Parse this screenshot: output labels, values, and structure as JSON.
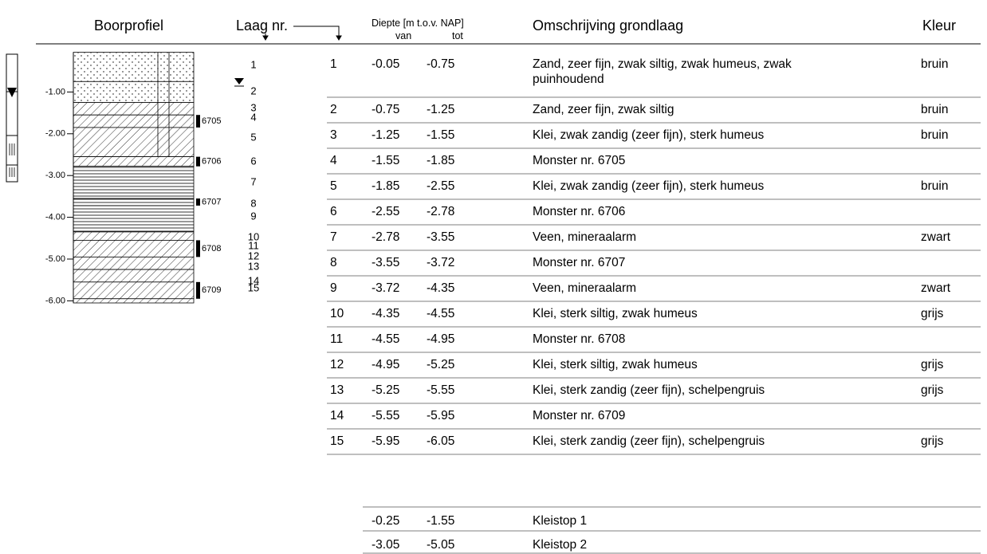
{
  "header": {
    "profile": "Boorprofiel",
    "layer_nr": "Laag nr.",
    "depth": "Diepte [m t.o.v. NAP]",
    "from": "van",
    "to": "tot",
    "description": "Omschrijving grondlaag",
    "color": "Kleur"
  },
  "profile": {
    "depth_axis": [
      {
        "value": -1,
        "label": "-1.00"
      },
      {
        "value": -2,
        "label": "-2.00"
      },
      {
        "value": -3,
        "label": "-3.00"
      },
      {
        "value": -4,
        "label": "-4.00"
      },
      {
        "value": -5,
        "label": "-5.00"
      },
      {
        "value": -6,
        "label": "-6.00"
      }
    ],
    "layer_labels": [
      "1",
      "2",
      "3",
      "4",
      "5",
      "6",
      "7",
      "8",
      "9",
      "10",
      "11",
      "12",
      "13",
      "14",
      "15"
    ],
    "samples": [
      "6705",
      "6706",
      "6707",
      "6708",
      "6709"
    ]
  },
  "table": {
    "rows": [
      [
        "1",
        "-0.05",
        "-0.75",
        "Zand, zeer fijn, zwak siltig, zwak humeus, zwak puinhoudend",
        "bruin"
      ],
      [
        "2",
        "-0.75",
        "-1.25",
        "Zand, zeer fijn, zwak siltig",
        "bruin"
      ],
      [
        "3",
        "-1.25",
        "-1.55",
        "Klei, zwak zandig (zeer fijn), sterk humeus",
        "bruin"
      ],
      [
        "4",
        "-1.55",
        "-1.85",
        "Monster nr. 6705",
        ""
      ],
      [
        "5",
        "-1.85",
        "-2.55",
        "Klei, zwak zandig (zeer fijn), sterk humeus",
        "bruin"
      ],
      [
        "6",
        "-2.55",
        "-2.78",
        "Monster nr. 6706",
        ""
      ],
      [
        "7",
        "-2.78",
        "-3.55",
        "Veen, mineraalarm",
        "zwart"
      ],
      [
        "8",
        "-3.55",
        "-3.72",
        "Monster nr. 6707",
        ""
      ],
      [
        "9",
        "-3.72",
        "-4.35",
        "Veen, mineraalarm",
        "zwart"
      ],
      [
        "10",
        "-4.35",
        "-4.55",
        "Klei, sterk siltig, zwak humeus",
        "grijs"
      ],
      [
        "11",
        "-4.55",
        "-4.95",
        "Monster nr. 6708",
        ""
      ],
      [
        "12",
        "-4.95",
        "-5.25",
        "Klei, sterk siltig, zwak humeus",
        "grijs"
      ],
      [
        "13",
        "-5.25",
        "-5.55",
        "Klei, sterk zandig (zeer fijn), schelpengruis",
        "grijs"
      ],
      [
        "14",
        "-5.55",
        "-5.95",
        "Monster nr. 6709",
        ""
      ],
      [
        "15",
        "-5.95",
        "-6.05",
        "Klei, sterk zandig (zeer fijn), schelpengruis",
        "grijs"
      ]
    ]
  },
  "clay_tops": {
    "rows": [
      [
        "-0.25",
        "-1.55",
        "Kleistop 1"
      ],
      [
        "-3.05",
        "-5.05",
        "Kleistop 2"
      ]
    ]
  }
}
